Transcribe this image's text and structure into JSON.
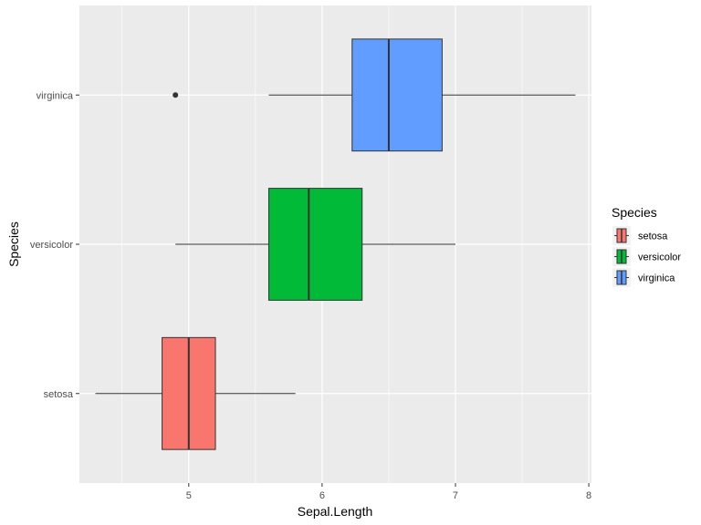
{
  "chart_data": {
    "type": "boxplot",
    "orientation": "horizontal",
    "xlabel": "Sepal.Length",
    "ylabel": "Species",
    "xlim": [
      4.18,
      8.02
    ],
    "x_ticks": [
      5,
      6,
      7,
      8
    ],
    "x_tick_labels": [
      "5",
      "6",
      "7",
      "8"
    ],
    "grid": true,
    "legend": {
      "title": "Species",
      "placement": "right",
      "entries": [
        "setosa",
        "versicolor",
        "virginica"
      ]
    },
    "categories": [
      "setosa",
      "versicolor",
      "virginica"
    ],
    "series": [
      {
        "name": "setosa",
        "color": "#F8766D",
        "min": 4.3,
        "q1": 4.8,
        "median": 5.0,
        "q3": 5.2,
        "max": 5.8,
        "outliers": []
      },
      {
        "name": "versicolor",
        "color": "#00BA38",
        "min": 4.9,
        "q1": 5.6,
        "median": 5.9,
        "q3": 6.3,
        "max": 7.0,
        "outliers": []
      },
      {
        "name": "virginica",
        "color": "#619CFF",
        "min": 5.6,
        "q1": 6.225,
        "median": 6.5,
        "q3": 6.9,
        "max": 7.9,
        "outliers": [
          4.9
        ]
      }
    ],
    "panel_color": "#EBEBEB",
    "grid_color": "#FFFFFF"
  }
}
